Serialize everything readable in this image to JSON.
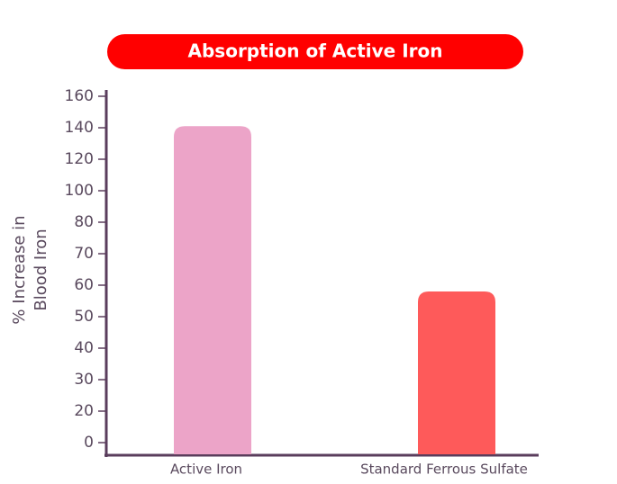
{
  "chart_data": {
    "type": "bar",
    "title": "Absorption of Active Iron",
    "y_label": [
      "% Increase in",
      "Blood Iron"
    ],
    "categories": [
      "Active Iron",
      "Standard Ferrous Sulfate"
    ],
    "values": [
      141,
      58
    ],
    "colors": [
      "#eca4c8",
      "#fe5a5a"
    ],
    "ylim": [
      0,
      160
    ],
    "yticks": [
      0,
      20,
      30,
      40,
      50,
      60,
      70,
      80,
      100,
      120,
      140,
      160
    ],
    "grid": false
  }
}
